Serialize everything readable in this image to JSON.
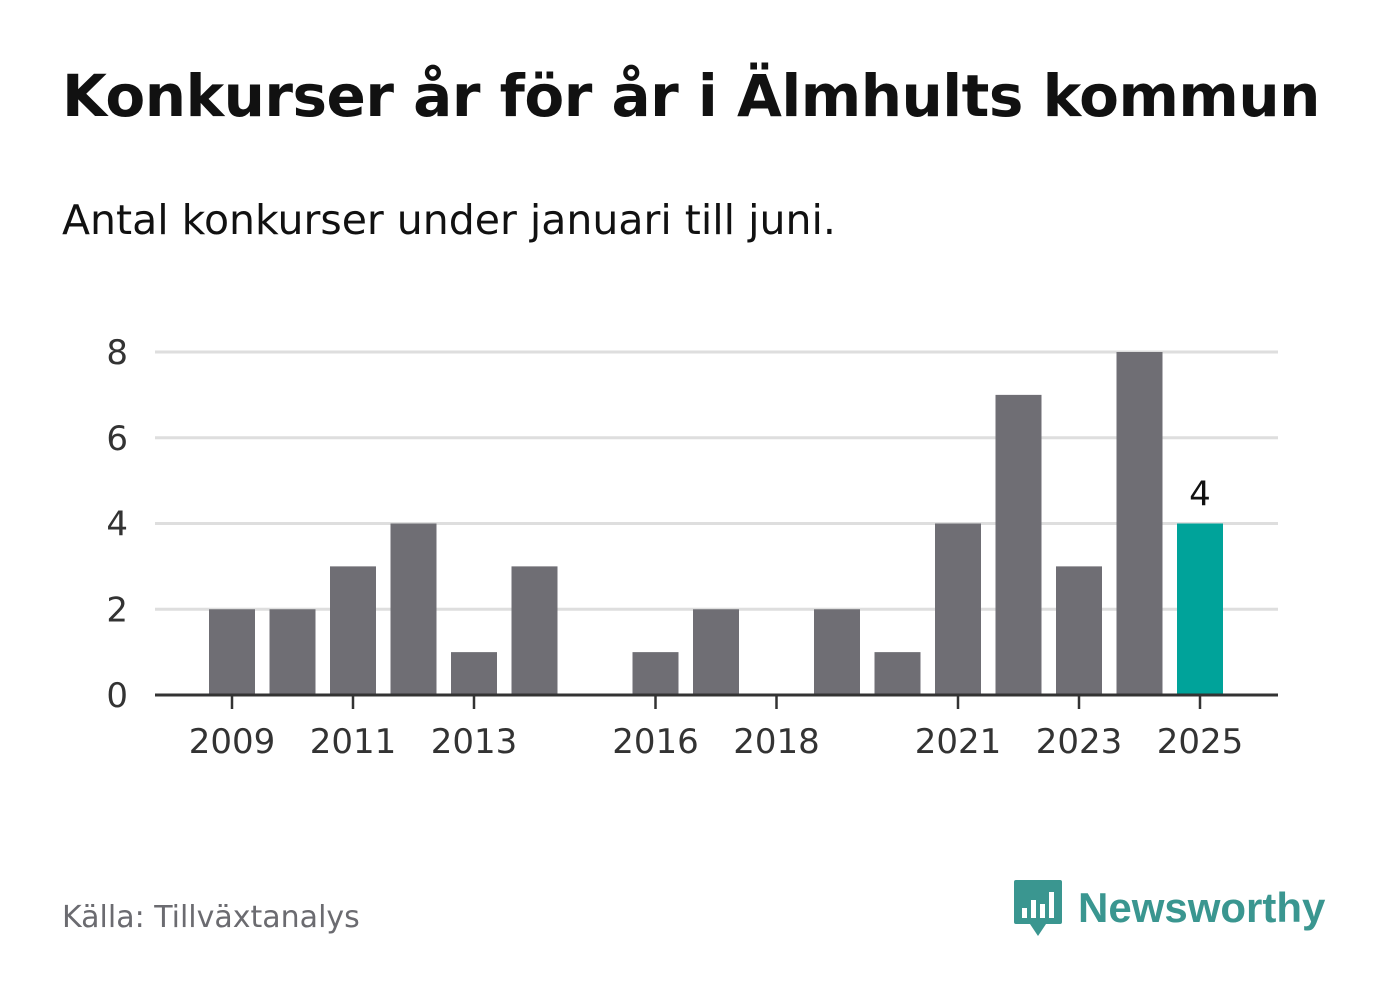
{
  "header": {
    "title": "Konkurser år för år i Älmhults kommun",
    "subtitle": "Antal konkurser under januari till juni."
  },
  "footer": {
    "source": "Källa: Tillväxtanalys",
    "brand": "Newsworthy"
  },
  "colors": {
    "bar": "#6f6e74",
    "highlight": "#00a39a",
    "grid": "#dedede",
    "axis": "#333333",
    "brand": "#3a9690"
  },
  "chart_data": {
    "type": "bar",
    "categories": [
      "2009",
      "2010",
      "2011",
      "2012",
      "2013",
      "2014",
      "2015",
      "2016",
      "2017",
      "2018",
      "2019",
      "2020",
      "2021",
      "2022",
      "2023",
      "2024",
      "2025"
    ],
    "values": [
      2,
      2,
      3,
      4,
      1,
      3,
      0,
      1,
      2,
      0,
      2,
      1,
      4,
      7,
      3,
      8,
      4
    ],
    "x_tick_labels": [
      "2009",
      "2011",
      "2013",
      "2016",
      "2018",
      "2021",
      "2023",
      "2025"
    ],
    "y_ticks": [
      0,
      2,
      4,
      6,
      8
    ],
    "ylim": [
      0,
      8
    ],
    "grid": true,
    "highlight_category": "2025",
    "data_labels": [
      {
        "category": "2025",
        "text": "4"
      }
    ],
    "xlabel": "",
    "ylabel": ""
  }
}
